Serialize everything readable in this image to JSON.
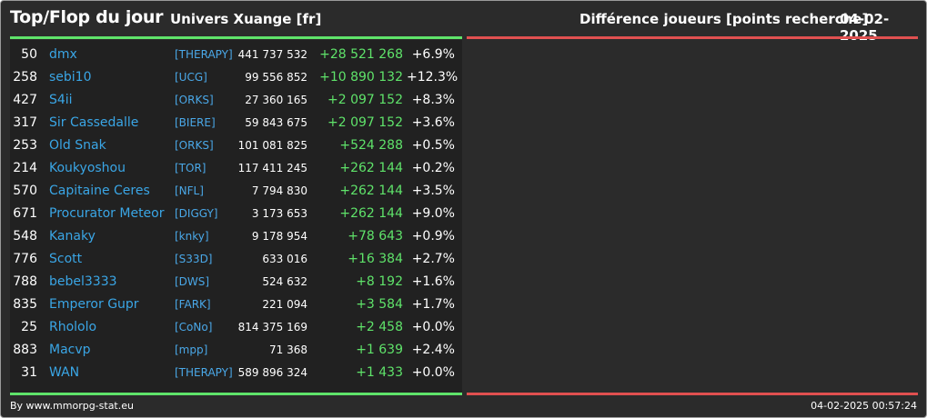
{
  "header": {
    "title": "Top/Flop du jour",
    "universe": "Univers Xuange [fr]",
    "metric": "Différence joueurs [points recherche]",
    "date": "04-02-2025"
  },
  "colors": {
    "accent_green": "#5fe36a",
    "accent_red": "#e05050",
    "name_blue": "#3aa6e6",
    "background": "#2b2b2b"
  },
  "rows": [
    {
      "rank": "50",
      "name": "dmx",
      "alliance": "[THERAPY]",
      "points": "441 737 532",
      "diff": "+28 521 268",
      "pct": "+6.9%"
    },
    {
      "rank": "258",
      "name": "sebi10",
      "alliance": "[UCG]",
      "points": "99 556 852",
      "diff": "+10 890 132",
      "pct": "+12.3%"
    },
    {
      "rank": "427",
      "name": "S4ii",
      "alliance": "[ORKS]",
      "points": "27 360 165",
      "diff": "+2 097 152",
      "pct": "+8.3%"
    },
    {
      "rank": "317",
      "name": "Sir Cassedalle",
      "alliance": "[BIERE]",
      "points": "59 843 675",
      "diff": "+2 097 152",
      "pct": "+3.6%"
    },
    {
      "rank": "253",
      "name": "Old Snak",
      "alliance": "[ORKS]",
      "points": "101 081 825",
      "diff": "+524 288",
      "pct": "+0.5%"
    },
    {
      "rank": "214",
      "name": "Koukyoshou",
      "alliance": "[TOR]",
      "points": "117 411 245",
      "diff": "+262 144",
      "pct": "+0.2%"
    },
    {
      "rank": "570",
      "name": "Capitaine Ceres",
      "alliance": "[NFL]",
      "points": "7 794 830",
      "diff": "+262 144",
      "pct": "+3.5%"
    },
    {
      "rank": "671",
      "name": "Procurator Meteor",
      "alliance": "[DIGGY]",
      "points": "3 173 653",
      "diff": "+262 144",
      "pct": "+9.0%"
    },
    {
      "rank": "548",
      "name": "Kanaky",
      "alliance": "[knky]",
      "points": "9 178 954",
      "diff": "+78 643",
      "pct": "+0.9%"
    },
    {
      "rank": "776",
      "name": "Scott",
      "alliance": "[S33D]",
      "points": "633 016",
      "diff": "+16 384",
      "pct": "+2.7%"
    },
    {
      "rank": "788",
      "name": "bebel3333",
      "alliance": "[DWS]",
      "points": "524 632",
      "diff": "+8 192",
      "pct": "+1.6%"
    },
    {
      "rank": "835",
      "name": "Emperor Gupr",
      "alliance": "[FARK]",
      "points": "221 094",
      "diff": "+3 584",
      "pct": "+1.7%"
    },
    {
      "rank": "25",
      "name": "Rhololo",
      "alliance": "[CoNo]",
      "points": "814 375 169",
      "diff": "+2 458",
      "pct": "+0.0%"
    },
    {
      "rank": "883",
      "name": "Macvp",
      "alliance": "[mpp]",
      "points": "71 368",
      "diff": "+1 639",
      "pct": "+2.4%"
    },
    {
      "rank": "31",
      "name": "WAN",
      "alliance": "[THERAPY]",
      "points": "589 896 324",
      "diff": "+1 433",
      "pct": "+0.0%"
    }
  ],
  "footer": {
    "credit": "By www.mmorpg-stat.eu",
    "timestamp": "04-02-2025 00:57:24"
  }
}
